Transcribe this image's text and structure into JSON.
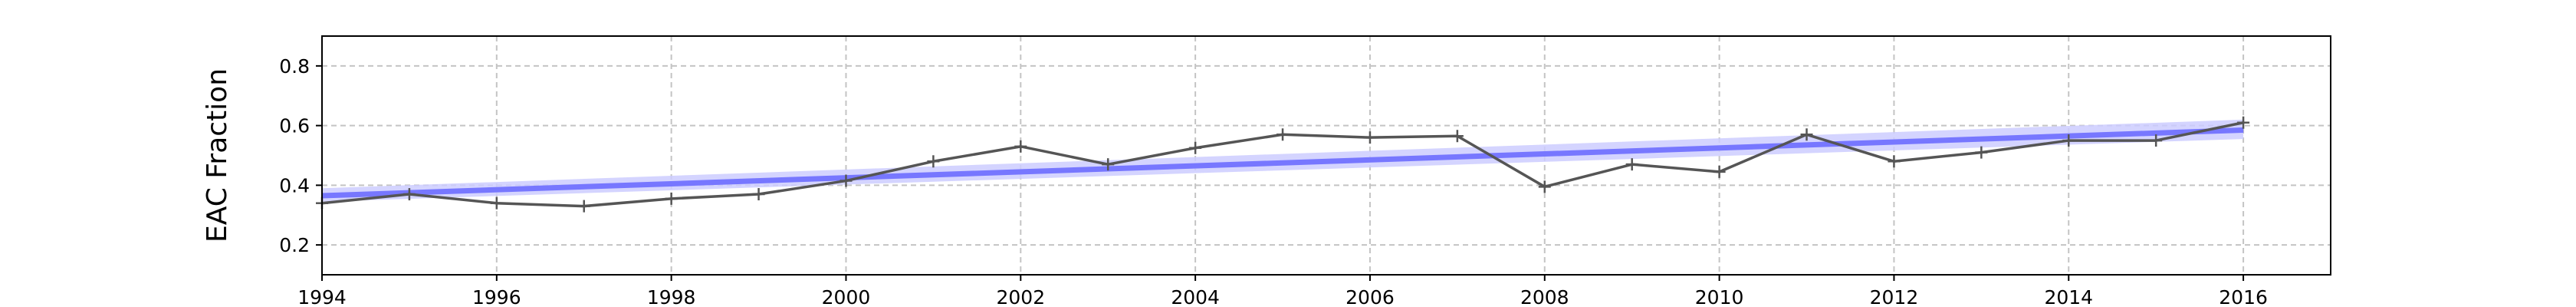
{
  "chart_data": {
    "type": "line",
    "title": "",
    "xlabel": "",
    "ylabel": "EAC Fraction",
    "xlim": [
      1994,
      2017
    ],
    "ylim": [
      0.1,
      0.9
    ],
    "xticks": [
      1994,
      1996,
      1998,
      2000,
      2002,
      2004,
      2006,
      2008,
      2010,
      2012,
      2014,
      2016
    ],
    "yticks": [
      0.2,
      0.4,
      0.6,
      0.8
    ],
    "ytick_labels": [
      "0.2",
      "0.4",
      "0.6",
      "0.8"
    ],
    "grid": true,
    "legend": "none",
    "series": [
      {
        "x": [
          1994,
          1995,
          1996,
          1997,
          1998,
          1999,
          2000,
          2001,
          2002,
          2003,
          2004,
          2005,
          2006,
          2007,
          2008,
          2009,
          2010,
          2011,
          2012,
          2013,
          2014,
          2015,
          2016
        ],
        "y": [
          0.34,
          0.37,
          0.34,
          0.33,
          0.355,
          0.37,
          0.415,
          0.48,
          0.53,
          0.47,
          0.525,
          0.57,
          0.56,
          0.565,
          0.395,
          0.47,
          0.445,
          0.57,
          0.48,
          0.51,
          0.55,
          0.55,
          0.61
        ],
        "color": "#555555",
        "marker": "+"
      }
    ],
    "trend": {
      "x": [
        1994,
        2016
      ],
      "y": [
        0.365,
        0.585
      ],
      "band_lower": [
        0.345,
        0.555
      ],
      "band_upper": [
        0.39,
        0.62
      ],
      "color": "#7777ff",
      "band_color": "#ccccff"
    }
  }
}
